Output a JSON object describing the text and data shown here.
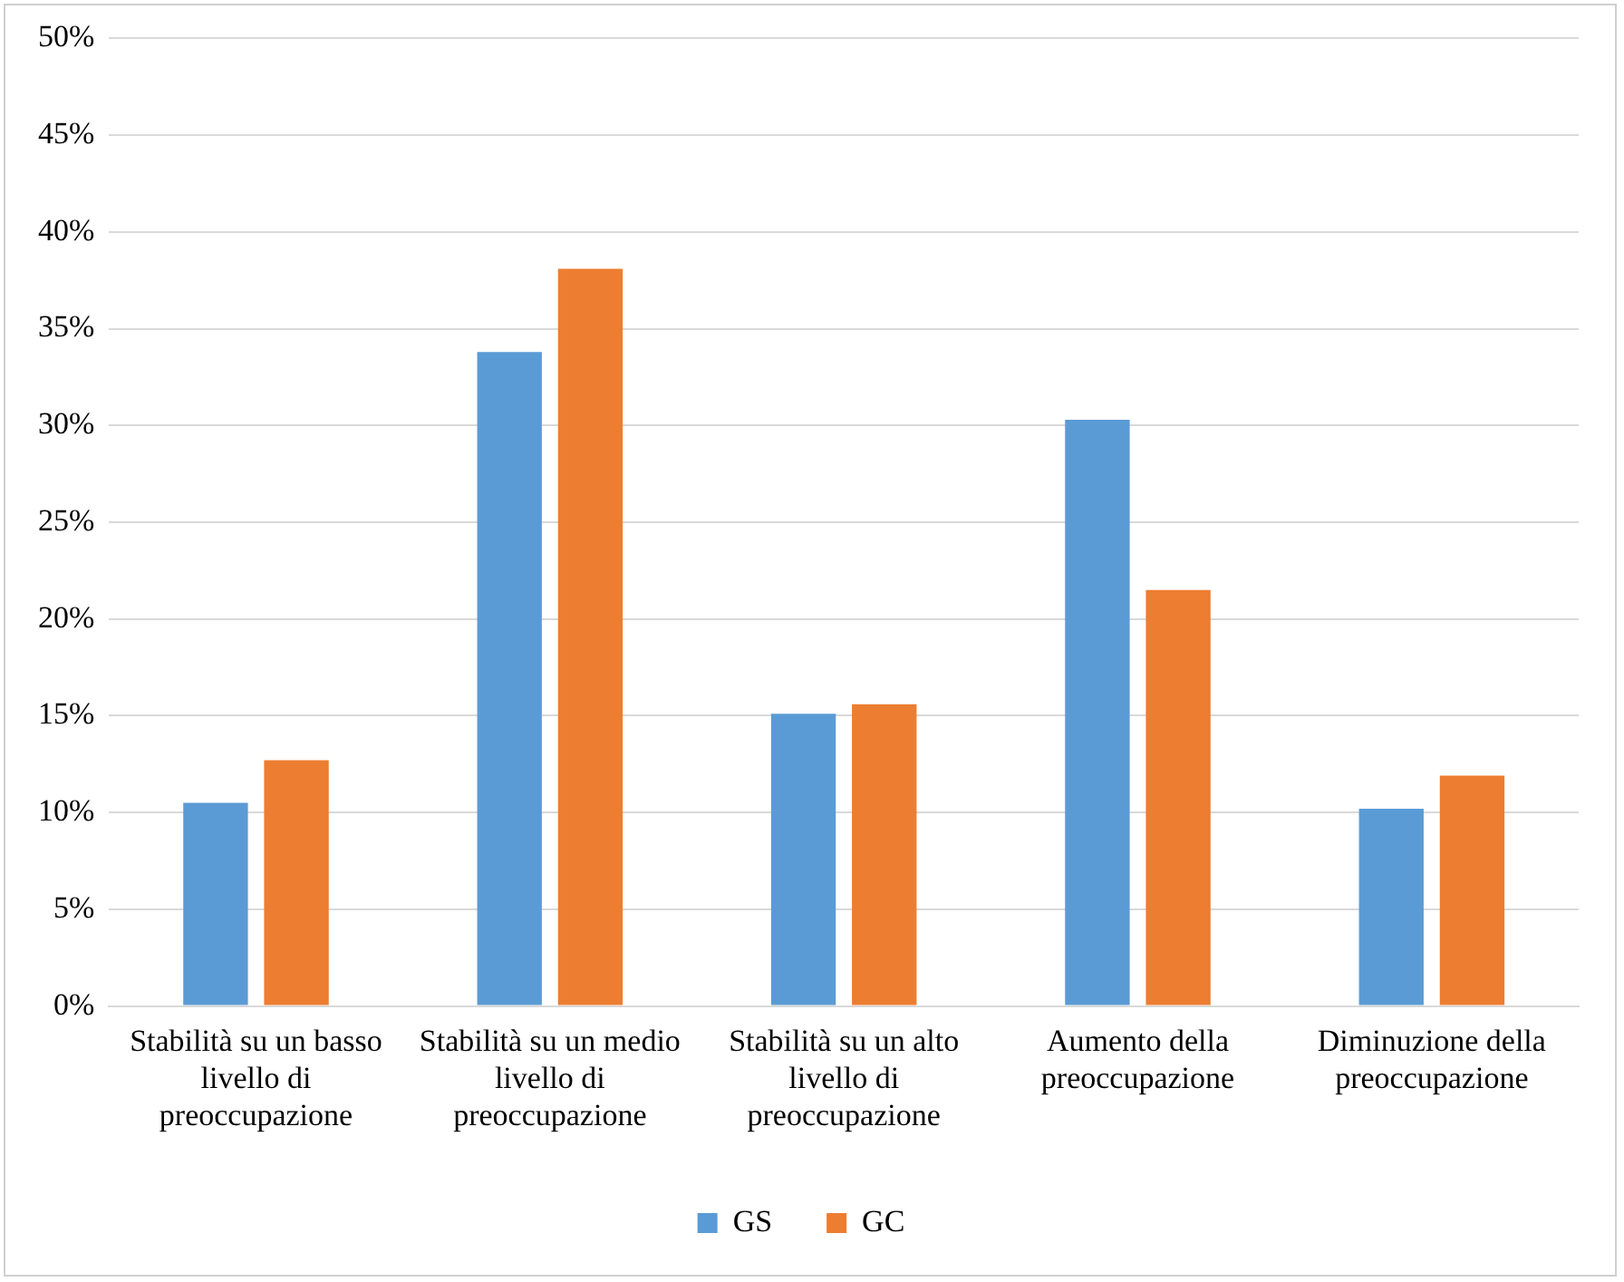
{
  "chart_data": {
    "type": "bar",
    "categories": [
      "Stabilità su un basso livello di preoccupazione",
      "Stabilità su un medio livello di preoccupazione",
      "Stabilità su un alto livello di preoccupazione",
      "Aumento della preoccupazione",
      "Diminuzione della preoccupazione"
    ],
    "series": [
      {
        "name": "GS",
        "color": "#5b9bd5",
        "values": [
          10.5,
          33.8,
          15.1,
          30.3,
          10.2
        ]
      },
      {
        "name": "GC",
        "color": "#ed7d31",
        "values": [
          12.7,
          38.1,
          15.6,
          21.5,
          11.9
        ]
      }
    ],
    "ylim": [
      0,
      50
    ],
    "yticks": [
      {
        "value": 0,
        "label": "0%"
      },
      {
        "value": 5,
        "label": "5%"
      },
      {
        "value": 10,
        "label": "10%"
      },
      {
        "value": 15,
        "label": "15%"
      },
      {
        "value": 20,
        "label": "20%"
      },
      {
        "value": 25,
        "label": "25%"
      },
      {
        "value": 30,
        "label": "30%"
      },
      {
        "value": 35,
        "label": "35%"
      },
      {
        "value": 40,
        "label": "40%"
      },
      {
        "value": 45,
        "label": "45%"
      },
      {
        "value": 50,
        "label": "50%"
      }
    ],
    "grid": "y",
    "legend": "bottom"
  }
}
